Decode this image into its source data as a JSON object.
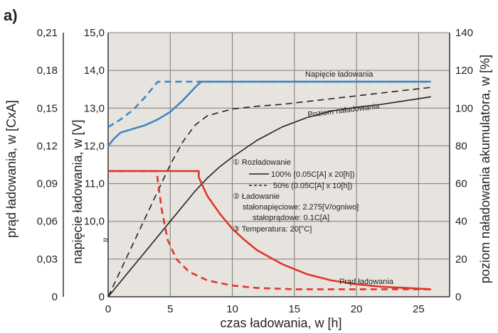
{
  "panel_label": "a)",
  "colors": {
    "plot_bg": "#e7e4df",
    "grid": "#7d7b78",
    "voltage": "#3f86c6",
    "charge_level": "#222222",
    "current": "#e0362a",
    "axis": "#333333"
  },
  "chart_data": {
    "type": "line",
    "xlabel": "czas ładowania, w [h]",
    "xlim": [
      0,
      27.5
    ],
    "xticks": [
      "0",
      "5",
      "10",
      "15",
      "20",
      "25"
    ],
    "grid": true,
    "axes": {
      "current": {
        "label": "prąd ładowania, w [CxA]",
        "ticks": [
          "0,21",
          "0,18",
          "0,15",
          "0,12",
          "0,09",
          "0,06",
          "0,03",
          "0"
        ]
      },
      "voltage": {
        "label": "napięcie ładowania, w [V]",
        "ticks": [
          "15,0",
          "14,0",
          "13,0",
          "12,0",
          "11,0",
          "10,0",
          "0"
        ],
        "break_symbol": "≈"
      },
      "level": {
        "label": "poziom naładowania akumulatora, w [%]",
        "ticks": [
          "140",
          "120",
          "100",
          "80",
          "60",
          "40",
          "20",
          "0"
        ]
      }
    },
    "annotations": {
      "voltage": "Napięcie ładowania",
      "level": "Poziom naładowania",
      "current": "Prąd ładowania"
    },
    "legend": {
      "item1_title": "① Rozładowanie",
      "item1_solid": "100% (0.05C[A] x 20[h])",
      "item1_dashed": "50% (0.05C[A] x 10[h])",
      "item2_title": "② Ładowanie",
      "item2_line1": "stałonapięciowe: 2.275[V/ogniwo]",
      "item2_line2": "stałoprądowe: 0.1C[A]",
      "item3": "③ Temperatura: 20[°C]"
    },
    "series": [
      {
        "key": "voltage_100",
        "axis": "voltage",
        "dash": false,
        "x": [
          0,
          0.5,
          1,
          2,
          3,
          4,
          5,
          6,
          7,
          7.5,
          10,
          15,
          20,
          25,
          26
        ],
        "y": [
          12.0,
          12.2,
          12.35,
          12.45,
          12.55,
          12.7,
          12.9,
          13.2,
          13.55,
          13.7,
          13.7,
          13.7,
          13.7,
          13.7,
          13.7
        ]
      },
      {
        "key": "voltage_50",
        "axis": "voltage",
        "dash": true,
        "x": [
          0,
          1,
          2,
          3,
          3.5,
          4,
          26
        ],
        "y": [
          12.5,
          12.7,
          12.95,
          13.3,
          13.5,
          13.7,
          13.7
        ]
      },
      {
        "key": "level_100",
        "axis": "level",
        "dash": false,
        "x": [
          0,
          1,
          2,
          3,
          4,
          5,
          6,
          7,
          8,
          9,
          10,
          12,
          14,
          16,
          18,
          20,
          22,
          24,
          26
        ],
        "y": [
          0,
          8,
          16,
          24,
          32,
          40,
          48,
          56,
          63,
          69,
          74,
          83,
          90,
          95,
          98.5,
          100.5,
          102,
          104,
          106
        ]
      },
      {
        "key": "level_50",
        "axis": "level",
        "dash": true,
        "x": [
          0,
          1,
          2,
          3,
          4,
          5,
          6,
          7,
          8,
          10,
          12,
          14,
          16,
          18,
          20,
          22,
          24,
          26
        ],
        "y": [
          0,
          14,
          28,
          42,
          56,
          70,
          82,
          91,
          96,
          99.5,
          101,
          102,
          103.5,
          105,
          106.5,
          108,
          109.5,
          111
        ]
      },
      {
        "key": "current_100",
        "axis": "current",
        "dash": false,
        "x": [
          0,
          7.3,
          7.3,
          8,
          9,
          10,
          11,
          12,
          14,
          16,
          18,
          20,
          22,
          24,
          26
        ],
        "y": [
          0.1,
          0.1,
          0.095,
          0.08,
          0.066,
          0.054,
          0.045,
          0.037,
          0.026,
          0.018,
          0.013,
          0.01,
          0.008,
          0.007,
          0.006
        ]
      },
      {
        "key": "current_50",
        "axis": "current",
        "dash": true,
        "x": [
          0,
          3.9,
          4.3,
          4.8,
          5.5,
          6.5,
          8,
          10,
          12,
          15,
          18,
          21,
          24,
          26
        ],
        "y": [
          0.1,
          0.1,
          0.07,
          0.045,
          0.03,
          0.02,
          0.013,
          0.009,
          0.007,
          0.006,
          0.006,
          0.006,
          0.006,
          0.006
        ]
      }
    ]
  }
}
